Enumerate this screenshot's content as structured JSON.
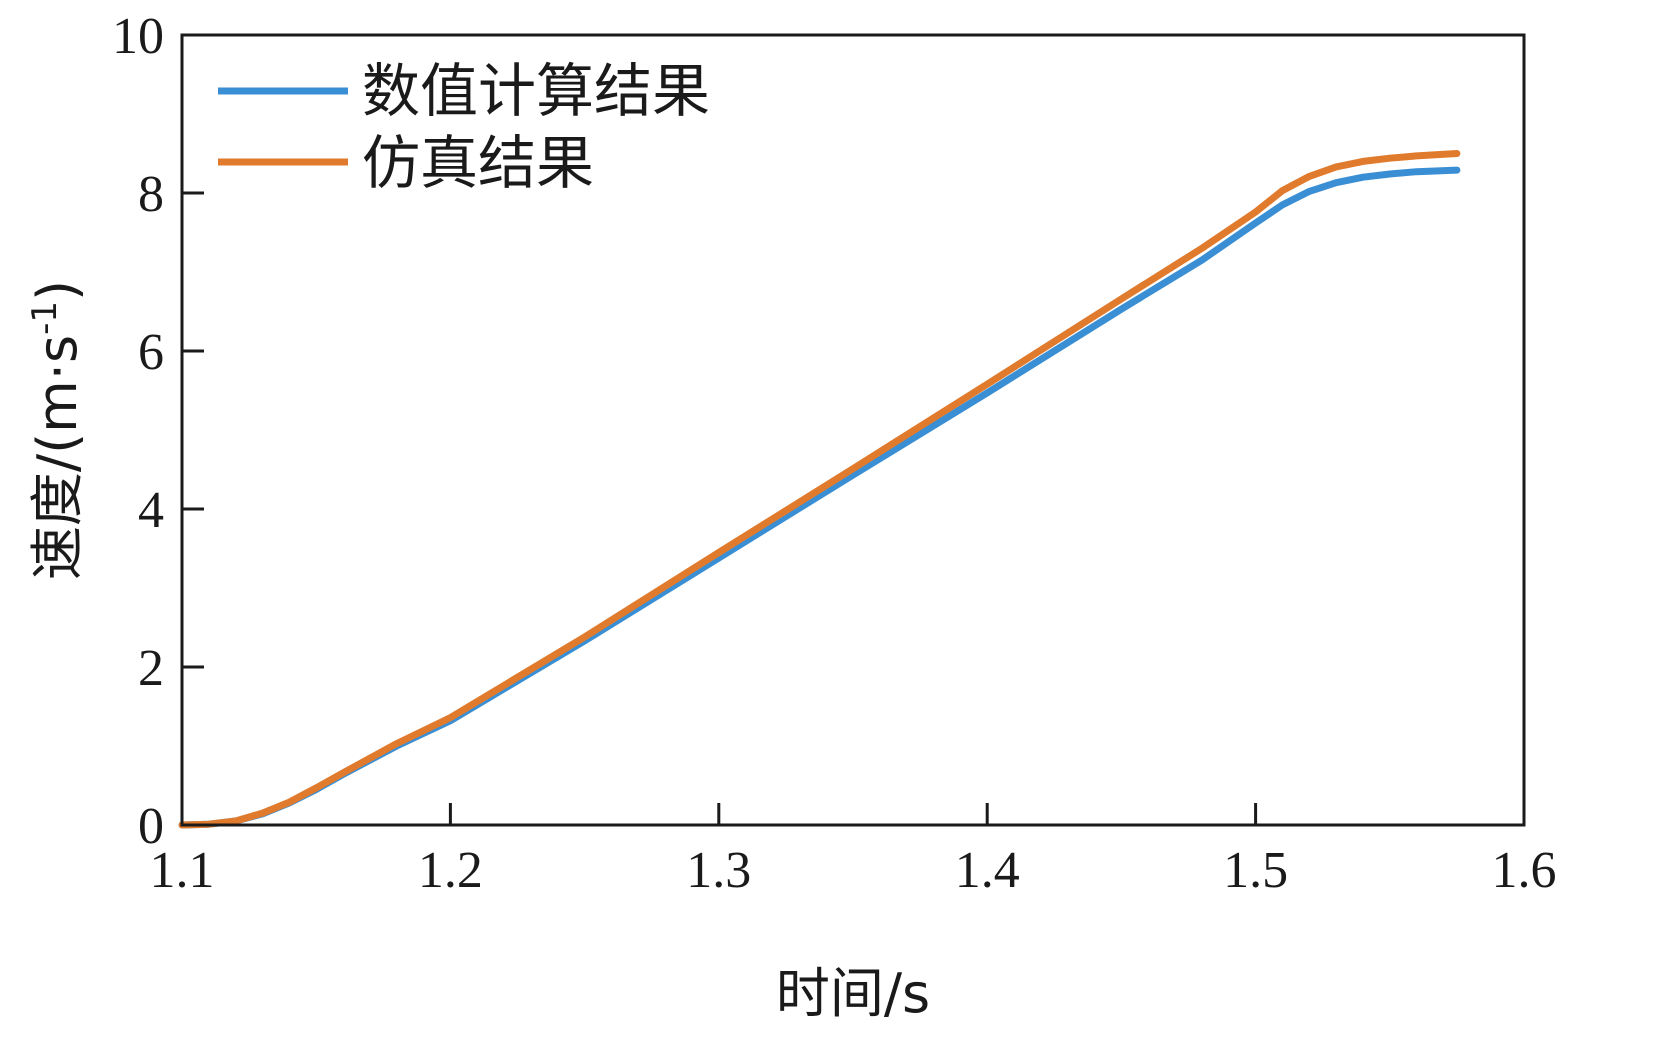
{
  "chart_data": {
    "type": "line",
    "title": "",
    "xlabel": "时间/s",
    "ylabel_main": "速度/(m·s",
    "ylabel_sup": "-1",
    "ylabel_close": ")",
    "xlim": [
      1.1,
      1.6
    ],
    "ylim": [
      0,
      10
    ],
    "xticks": [
      1.1,
      1.2,
      1.3,
      1.4,
      1.5,
      1.6
    ],
    "yticks": [
      0,
      2,
      4,
      6,
      8,
      10
    ],
    "xtick_labels": [
      "1.1",
      "1.2",
      "1.3",
      "1.4",
      "1.5",
      "1.6"
    ],
    "ytick_labels": [
      "0",
      "2",
      "4",
      "6",
      "8",
      "10"
    ],
    "grid": false,
    "legend_position": "top-left",
    "series": [
      {
        "name": "数值计算结果",
        "color": "#3a8fd4",
        "x": [
          1.1,
          1.11,
          1.12,
          1.13,
          1.14,
          1.15,
          1.16,
          1.18,
          1.2,
          1.25,
          1.3,
          1.35,
          1.4,
          1.45,
          1.48,
          1.5,
          1.51,
          1.52,
          1.53,
          1.54,
          1.55,
          1.56,
          1.575
        ],
        "y": [
          0,
          0.01,
          0.05,
          0.14,
          0.28,
          0.45,
          0.64,
          1.0,
          1.32,
          2.33,
          3.38,
          4.43,
          5.47,
          6.53,
          7.15,
          7.62,
          7.85,
          8.02,
          8.13,
          8.2,
          8.24,
          8.27,
          8.29
        ]
      },
      {
        "name": "仿真结果",
        "color": "#e07b2e",
        "x": [
          1.1,
          1.11,
          1.12,
          1.13,
          1.14,
          1.15,
          1.16,
          1.18,
          1.2,
          1.25,
          1.3,
          1.35,
          1.4,
          1.45,
          1.48,
          1.5,
          1.51,
          1.52,
          1.53,
          1.54,
          1.55,
          1.56,
          1.575
        ],
        "y": [
          0,
          0.01,
          0.05,
          0.15,
          0.29,
          0.47,
          0.66,
          1.03,
          1.36,
          2.38,
          3.45,
          4.51,
          5.58,
          6.66,
          7.3,
          7.76,
          8.03,
          8.21,
          8.33,
          8.4,
          8.44,
          8.47,
          8.5
        ]
      }
    ]
  }
}
